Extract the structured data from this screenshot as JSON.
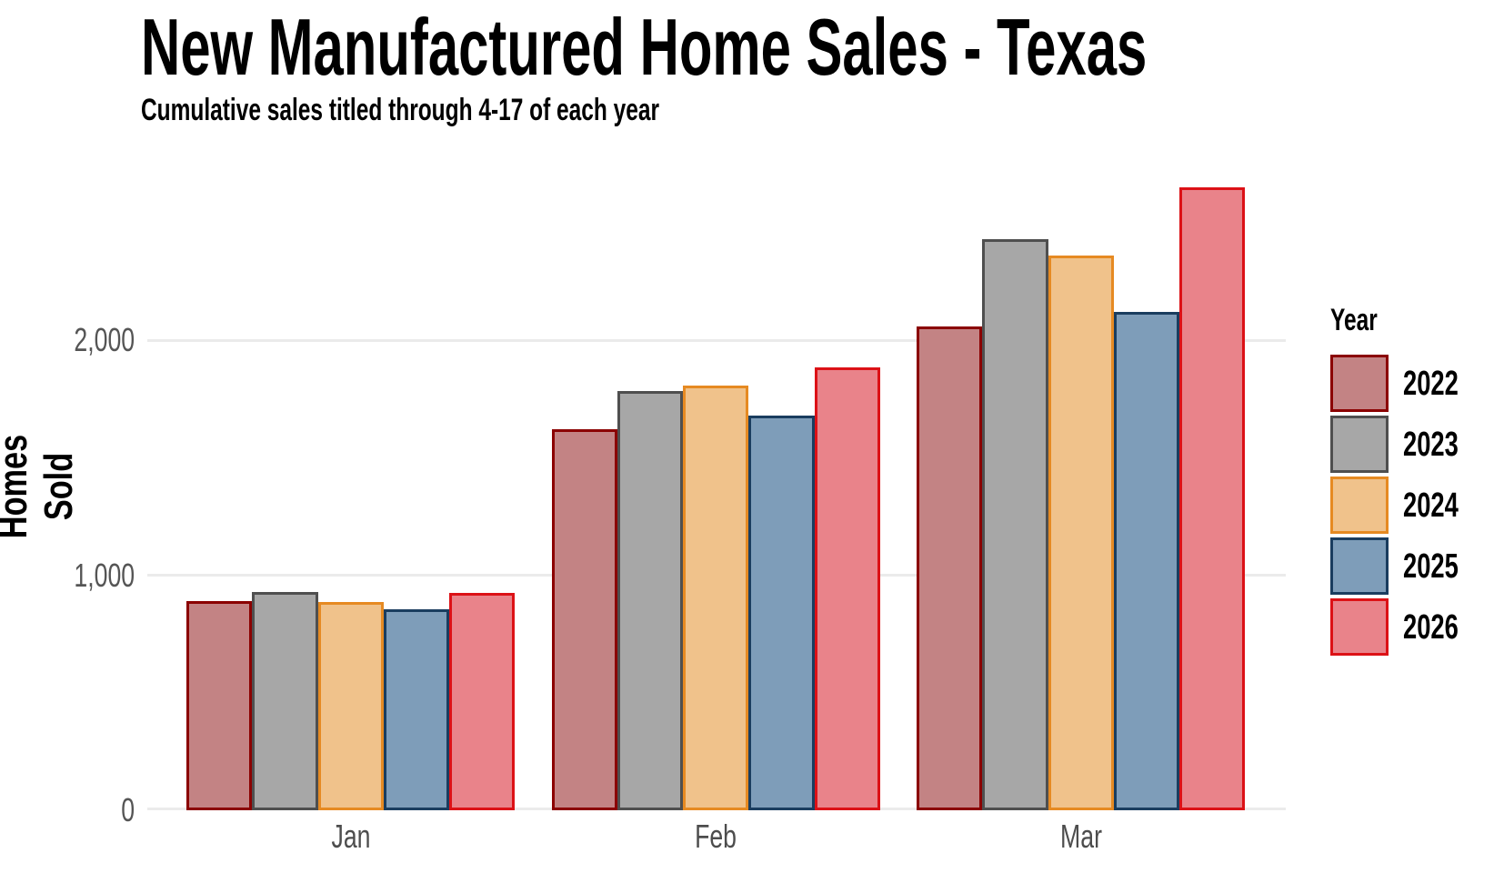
{
  "title": "New Manufactured Home Sales - Texas",
  "subtitle": "Cumulative sales titled through 4-17 of each year",
  "y_axis": {
    "label": "Homes Sold",
    "tick_labels": [
      "0",
      "1,000",
      "2,000"
    ]
  },
  "x_axis": {
    "tick_labels": [
      "Jan",
      "Feb",
      "Mar"
    ]
  },
  "legend": {
    "title": "Year"
  },
  "colors": {
    "grid": "#EBEBEB",
    "axis_tick_text": "#555555",
    "month_label_text": "#4D4D4D",
    "title_text": "#000000",
    "background": "#FFFFFF"
  },
  "chart_data": {
    "type": "bar",
    "title": "New Manufactured Home Sales - Texas",
    "subtitle": "Cumulative sales titled through 4-17 of each year",
    "xlabel": "",
    "ylabel": "Homes Sold",
    "categories": [
      "Jan",
      "Feb",
      "Mar"
    ],
    "series": [
      {
        "name": "2022",
        "fill": "#C38384",
        "border": "#8B0000",
        "values": [
          890,
          1620,
          2060
        ]
      },
      {
        "name": "2023",
        "fill": "#A7A7A7",
        "border": "#4F4F4F",
        "values": [
          930,
          1785,
          2430
        ]
      },
      {
        "name": "2024",
        "fill": "#F0C28B",
        "border": "#E68A22",
        "values": [
          885,
          1805,
          2360
        ]
      },
      {
        "name": "2025",
        "fill": "#7E9DB9",
        "border": "#1A3D5F",
        "values": [
          855,
          1680,
          2120
        ]
      },
      {
        "name": "2026",
        "fill": "#E9838A",
        "border": "#DC1116",
        "values": [
          925,
          1885,
          2650
        ]
      }
    ],
    "yticks": [
      0,
      1000,
      2000
    ],
    "ylim": [
      0,
      2808
    ],
    "grid": true,
    "legend_position": "right",
    "legend_title": "Year"
  }
}
